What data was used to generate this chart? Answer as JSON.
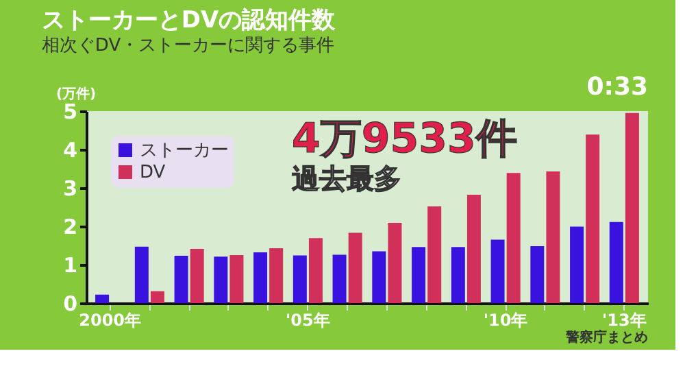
{
  "chart_data": {
    "type": "bar",
    "title": "ストーカーとDVの認知件数",
    "subtitle": "相次ぐDV・ストーカーに関する事件",
    "ylabel": "(万件)",
    "categories": [
      "2000年",
      null,
      null,
      null,
      null,
      "'05年",
      null,
      null,
      null,
      null,
      "'10年",
      null,
      null,
      "'13年"
    ],
    "series": [
      {
        "name": "ストーカー",
        "color": "#3a12e0",
        "values": [
          0.22,
          1.47,
          1.23,
          1.21,
          1.32,
          1.24,
          1.26,
          1.35,
          1.46,
          1.46,
          1.65,
          1.48,
          1.99,
          2.11
        ]
      },
      {
        "name": "DV",
        "color": "#d0305a",
        "values": [
          null,
          0.31,
          1.41,
          1.25,
          1.43,
          1.69,
          1.83,
          2.09,
          2.52,
          2.82,
          3.39,
          3.43,
          4.39,
          4.95
        ]
      }
    ],
    "ylim": [
      0,
      5
    ],
    "yticks": [
      0,
      1,
      2,
      3,
      4,
      5
    ],
    "grid": false,
    "legend": "top left",
    "annotations": [
      "0:33",
      "4万9533件",
      "過去最多",
      "警察庁まとめ"
    ]
  }
}
